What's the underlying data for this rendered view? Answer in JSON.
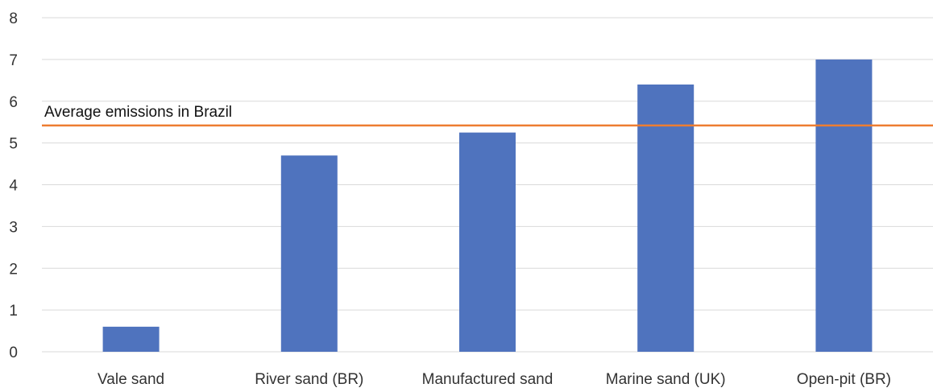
{
  "chart_data": {
    "type": "bar",
    "title": "",
    "xlabel": "",
    "ylabel": "",
    "categories": [
      "Vale sand",
      "River sand (BR)",
      "Manufactured sand",
      "Marine sand (UK)",
      "Open-pit (BR)"
    ],
    "series": [
      {
        "values": [
          0.6,
          4.7,
          5.25,
          6.4,
          7.0
        ],
        "color": "#4f73be"
      }
    ],
    "ylim": [
      0,
      8
    ],
    "yticks": [
      "0",
      "1",
      "2",
      "3",
      "4",
      "5",
      "6",
      "7",
      "8"
    ],
    "grid": true,
    "legend": "none",
    "reference_line": {
      "label": "Average emissions in Brazil",
      "value": 5.42,
      "color": "#ed7d31"
    }
  }
}
